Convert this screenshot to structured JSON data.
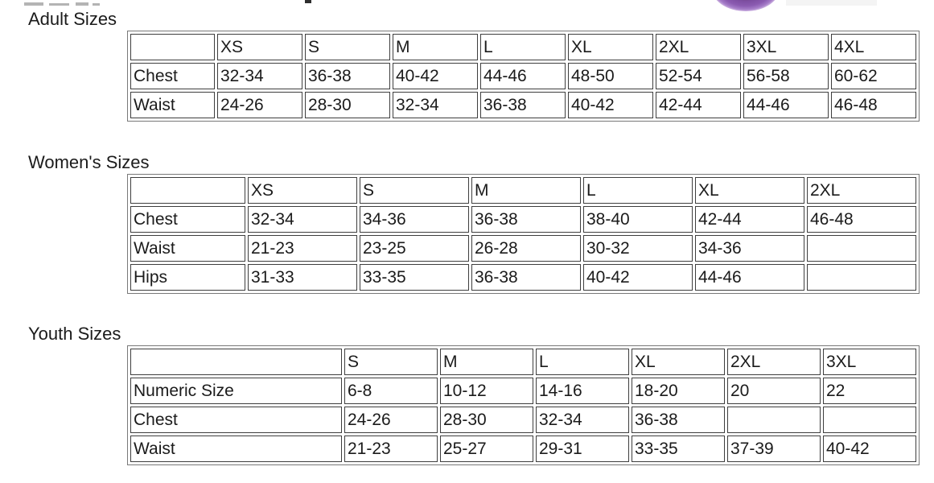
{
  "colors": {
    "bg": "#ffffff",
    "text": "#1b1b1b",
    "cell-border": "#3e3e3e",
    "table-border": "#787878",
    "remnant-light": "#b4b4b4",
    "remnant-dark": "#2e2e2e",
    "patch": "#f4f4f4",
    "logo-purple": "#8b5bb1",
    "logo-center": "#4e3833"
  },
  "sections": [
    {
      "title": "Adult Sizes",
      "columns": [
        "",
        "XS",
        "S",
        "M",
        "L",
        "XL",
        "2XL",
        "3XL",
        "4XL"
      ],
      "rows": [
        {
          "label": "Chest",
          "values": [
            "32-34",
            "36-38",
            "40-42",
            "44-46",
            "48-50",
            "52-54",
            "56-58",
            "60-62"
          ]
        },
        {
          "label": "Waist",
          "values": [
            "24-26",
            "28-30",
            "32-34",
            "36-38",
            "40-42",
            "42-44",
            "44-46",
            "46-48"
          ]
        }
      ]
    },
    {
      "title": "Women's Sizes",
      "columns": [
        "",
        "XS",
        "S",
        "M",
        "L",
        "XL",
        "2XL"
      ],
      "rows": [
        {
          "label": "Chest",
          "values": [
            "32-34",
            "34-36",
            "36-38",
            "38-40",
            "42-44",
            "46-48"
          ]
        },
        {
          "label": "Waist",
          "values": [
            "21-23",
            "23-25",
            "26-28",
            "30-32",
            "34-36",
            ""
          ]
        },
        {
          "label": "Hips",
          "values": [
            "31-33",
            "33-35",
            "36-38",
            "40-42",
            "44-46",
            ""
          ]
        }
      ]
    },
    {
      "title": "Youth Sizes",
      "columns": [
        "",
        "S",
        "M",
        "L",
        "XL",
        "2XL",
        "3XL"
      ],
      "rows": [
        {
          "label": "Numeric Size",
          "values": [
            "6-8",
            "10-12",
            "14-16",
            "18-20",
            "20",
            "22"
          ]
        },
        {
          "label": "Chest",
          "values": [
            "24-26",
            "28-30",
            "32-34",
            "36-38",
            "",
            ""
          ]
        },
        {
          "label": "Waist",
          "values": [
            "21-23",
            "25-27",
            "29-31",
            "33-35",
            "37-39",
            "40-42"
          ]
        }
      ]
    }
  ]
}
